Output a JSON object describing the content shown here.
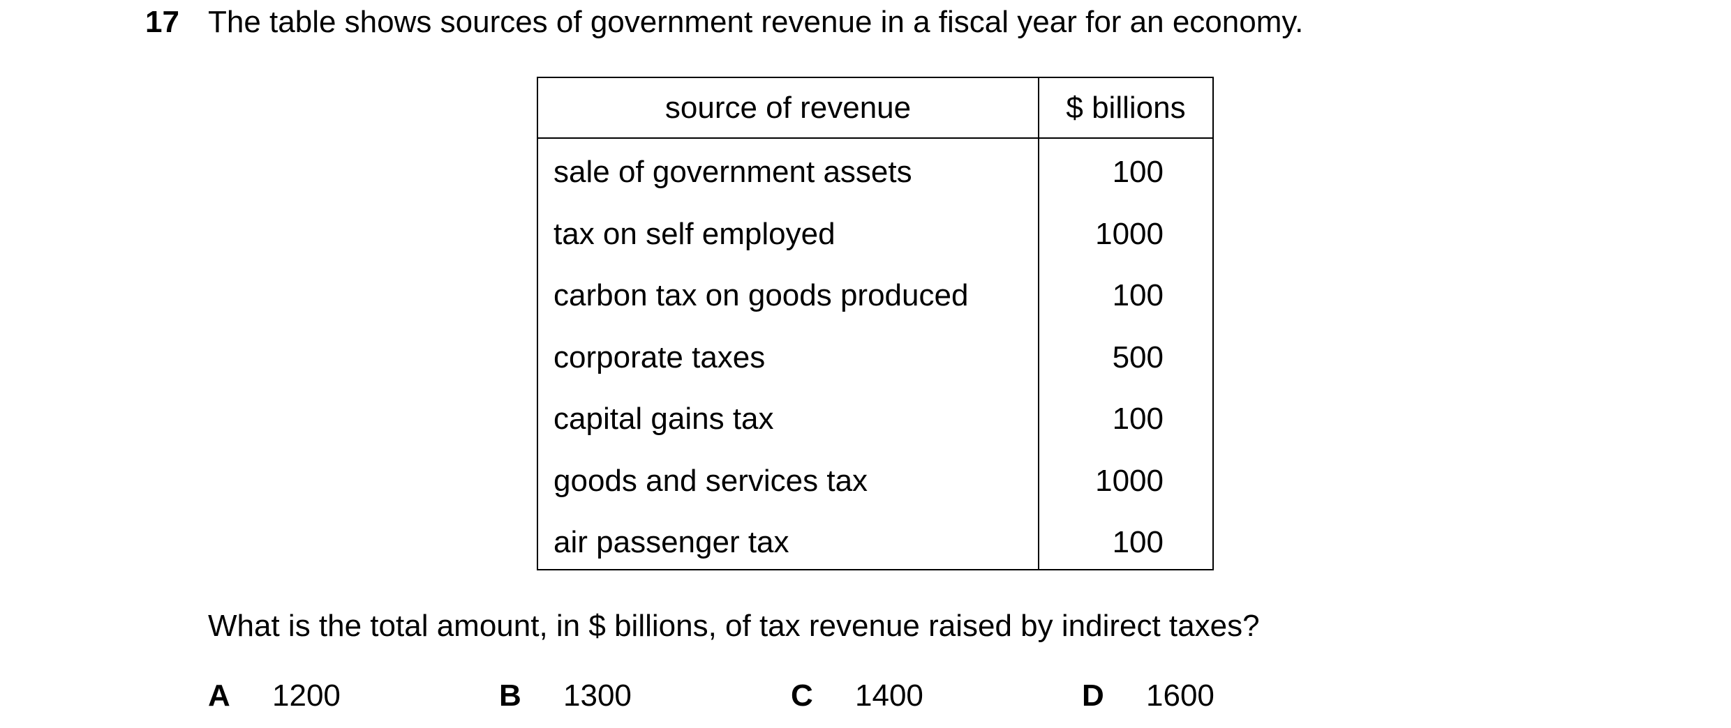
{
  "question": {
    "number": "17",
    "stem": "The table shows sources of government revenue in a fiscal year for an economy.",
    "prompt": "What is the total amount, in $ billions, of tax revenue raised by indirect taxes?"
  },
  "table": {
    "headers": [
      "source of revenue",
      "$ billions"
    ],
    "rows": [
      {
        "source": "sale of government assets",
        "value": "100"
      },
      {
        "source": "tax on self employed",
        "value": "1000"
      },
      {
        "source": "carbon tax on goods produced",
        "value": "100"
      },
      {
        "source": "corporate taxes",
        "value": "500"
      },
      {
        "source": "capital gains tax",
        "value": "100"
      },
      {
        "source": "goods and services tax",
        "value": "1000"
      },
      {
        "source": "air passenger tax",
        "value": "100"
      }
    ]
  },
  "options": [
    {
      "letter": "A",
      "value": "1200"
    },
    {
      "letter": "B",
      "value": "1300"
    },
    {
      "letter": "C",
      "value": "1400"
    },
    {
      "letter": "D",
      "value": "1600"
    }
  ]
}
